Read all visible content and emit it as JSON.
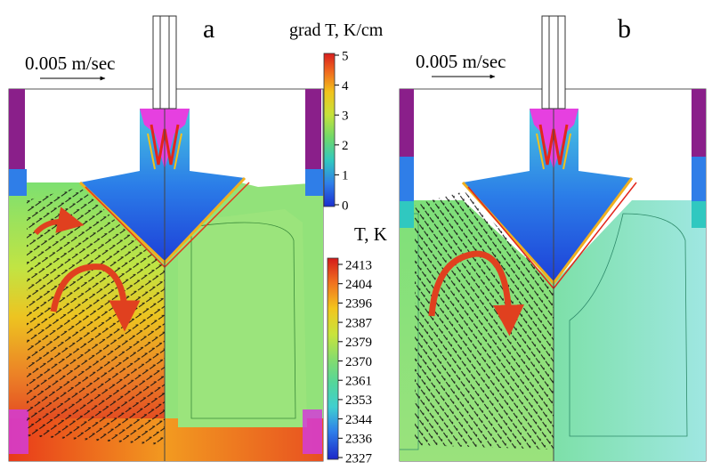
{
  "panels": [
    {
      "label": "a",
      "velocity_scale": "0.005 m/sec"
    },
    {
      "label": "b",
      "velocity_scale": "0.005 m/sec"
    }
  ],
  "grad_colorbar": {
    "title": "grad T, K/cm",
    "ticks": [
      "5",
      "4",
      "3",
      "2",
      "1",
      "0"
    ]
  },
  "temp_colorbar": {
    "title": "T, K",
    "ticks": [
      "2413",
      "2404",
      "2396",
      "2387",
      "2379",
      "2370",
      "2361",
      "2353",
      "2344",
      "2336",
      "2327"
    ]
  },
  "colors": {
    "purple_wall": "#8a1f8a",
    "hot_red": "#e2261b",
    "green_melt": "#92e27a",
    "flow_arrow": "#e0401f"
  },
  "icons": [
    "flow-arrow-icon",
    "velocity-scale-arrow-icon"
  ]
}
